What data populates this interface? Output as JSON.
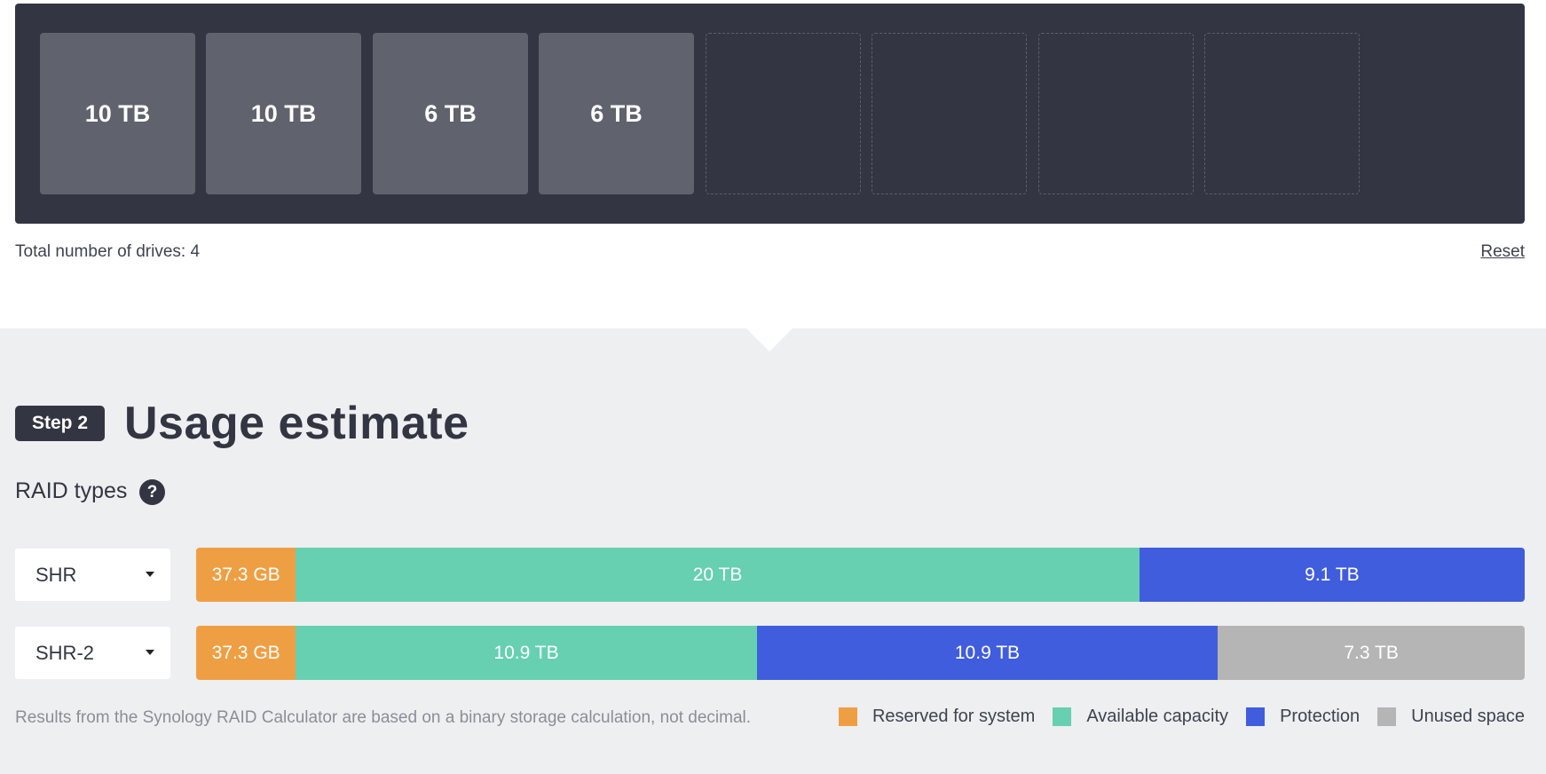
{
  "colors": {
    "reserved": "#ef9f43",
    "available": "#66d0b0",
    "protection": "#405ddd",
    "unused": "#b5b5b5",
    "bay_bg": "#333642",
    "drive_filled": "#60636d"
  },
  "drives": {
    "slots": [
      {
        "label": "10 TB",
        "filled": true
      },
      {
        "label": "10 TB",
        "filled": true
      },
      {
        "label": "6 TB",
        "filled": true
      },
      {
        "label": "6 TB",
        "filled": true
      },
      {
        "label": "",
        "filled": false
      },
      {
        "label": "",
        "filled": false
      },
      {
        "label": "",
        "filled": false
      },
      {
        "label": "",
        "filled": false
      }
    ],
    "total_label": "Total number of drives: 4",
    "reset_label": "Reset"
  },
  "step": {
    "badge": "Step 2",
    "title": "Usage estimate"
  },
  "raid": {
    "label": "RAID types",
    "help_icon": "?",
    "rows": [
      {
        "type": "SHR",
        "segments": [
          {
            "kind": "reserved",
            "label": "37.3 GB",
            "share": 0.075
          },
          {
            "kind": "available",
            "label": "20 TB",
            "share": 0.635
          },
          {
            "kind": "protection",
            "label": "9.1 TB",
            "share": 0.29
          }
        ]
      },
      {
        "type": "SHR-2",
        "segments": [
          {
            "kind": "reserved",
            "label": "37.3 GB",
            "share": 0.075
          },
          {
            "kind": "available",
            "label": "10.9 TB",
            "share": 0.347
          },
          {
            "kind": "protection",
            "label": "10.9 TB",
            "share": 0.347
          },
          {
            "kind": "unused",
            "label": "7.3 TB",
            "share": 0.231
          }
        ]
      }
    ]
  },
  "footnote": "Results from the Synology RAID Calculator are based on a binary storage calculation, not decimal.",
  "legend": [
    {
      "kind": "reserved",
      "label": "Reserved for system"
    },
    {
      "kind": "available",
      "label": "Available capacity"
    },
    {
      "kind": "protection",
      "label": "Protection"
    },
    {
      "kind": "unused",
      "label": "Unused space"
    }
  ]
}
